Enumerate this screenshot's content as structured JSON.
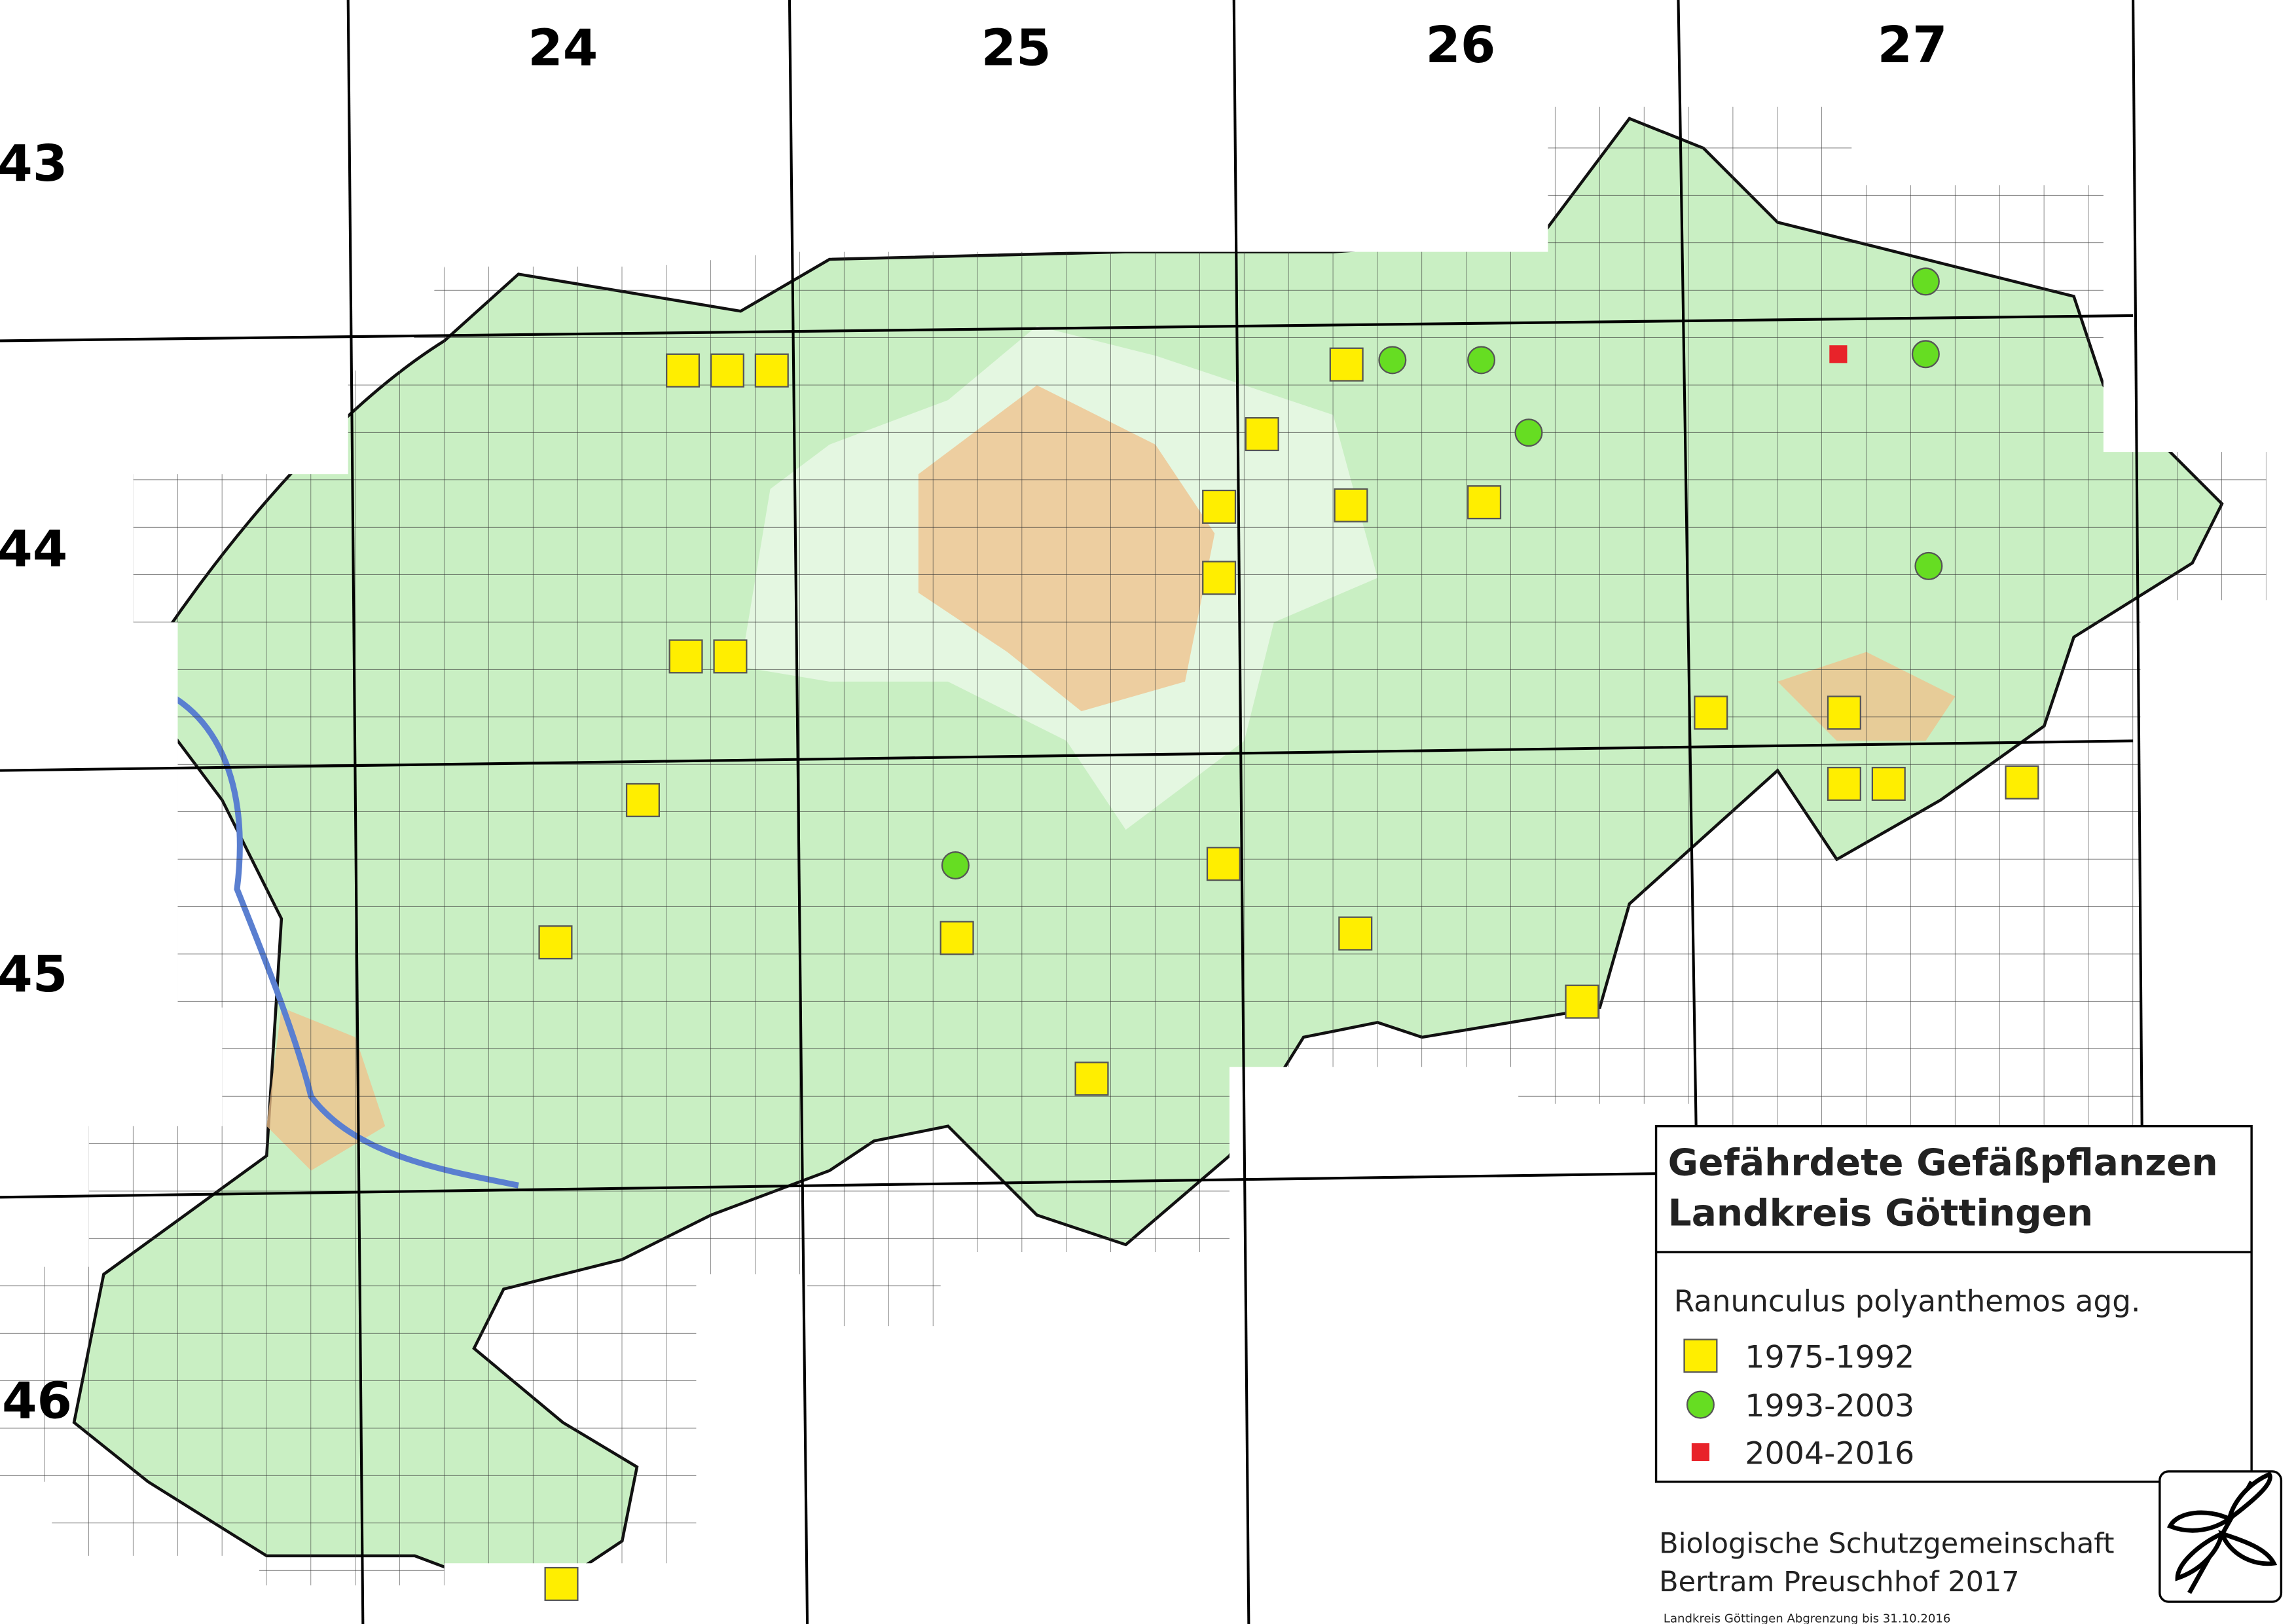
{
  "map": {
    "columns": [
      "24",
      "25",
      "26",
      "27"
    ],
    "rows": [
      "43",
      "44",
      "45",
      "46"
    ]
  },
  "legend": {
    "title_lines": [
      "Gefährdete Gefäßpflanzen",
      "Landkreis Göttingen"
    ],
    "species": "Ranunculus polyanthemos agg.",
    "items": [
      {
        "label": "1975-1992"
      },
      {
        "label": "1993-2003"
      },
      {
        "label": "2004-2016"
      }
    ]
  },
  "credits": {
    "lines": [
      "Biologische Schutzgemeinschaft",
      "Bertram Preuschhof 2017"
    ],
    "note": "Landkreis Göttingen Abgrenzung bis 31.10.2016"
  }
}
